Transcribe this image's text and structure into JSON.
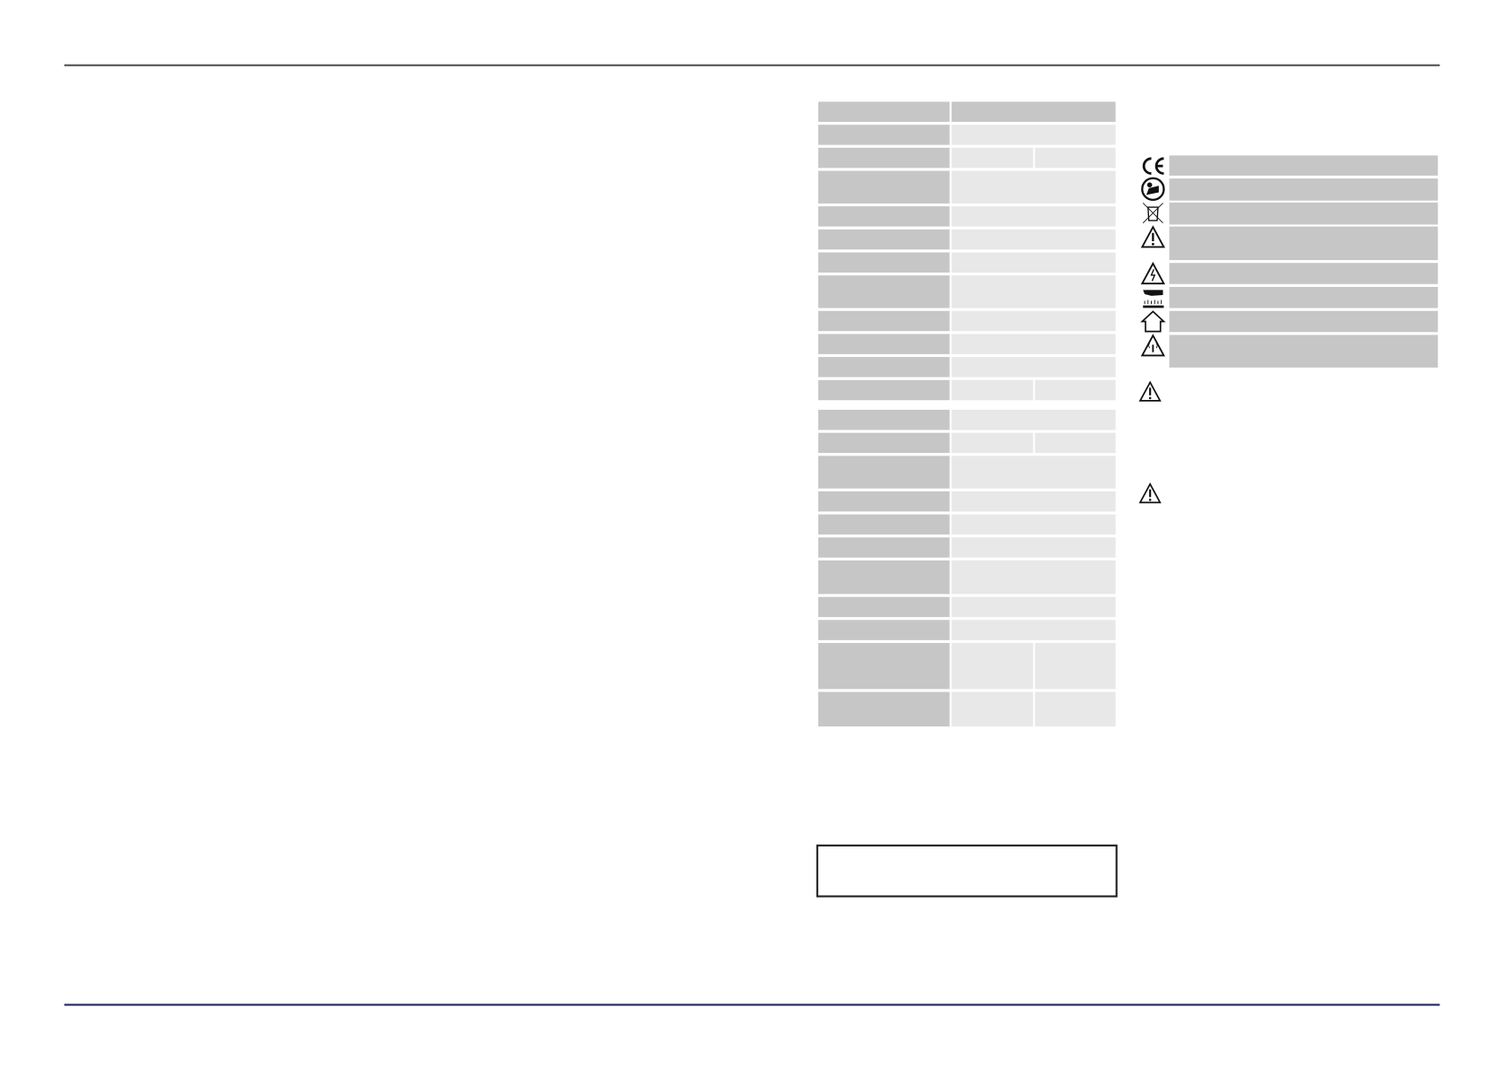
{
  "colors": {
    "header_rule": "#555555",
    "footer_rule": "#1f2a5c",
    "label_cell": "#c6c6c6",
    "value_cell": "#e8e8e8",
    "symbol_bar": "#c6c6c6"
  },
  "symbols": [
    {
      "icon": "ce-mark-icon"
    },
    {
      "icon": "read-manual-icon"
    },
    {
      "icon": "weee-bin-icon"
    },
    {
      "icon": "warning-icon"
    },
    {
      "icon": "electric-hazard-icon"
    },
    {
      "icon": "hand-hot-surface-icon"
    },
    {
      "icon": "indoor-use-icon"
    },
    {
      "icon": "radiation-warning-icon"
    }
  ],
  "notes": [
    {
      "icon": "warning-icon"
    },
    {
      "icon": "warning-icon"
    }
  ]
}
